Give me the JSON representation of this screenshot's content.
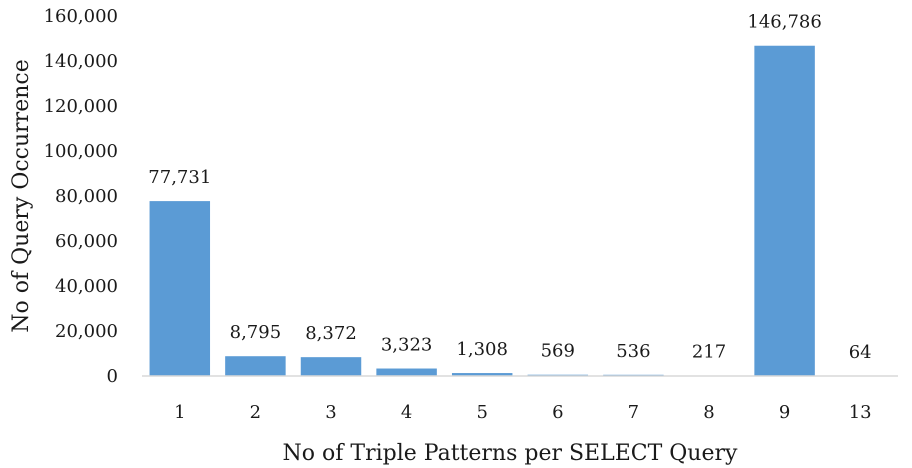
{
  "chart_data": {
    "type": "bar",
    "categories": [
      "1",
      "2",
      "3",
      "4",
      "5",
      "6",
      "7",
      "8",
      "9",
      "13"
    ],
    "values": [
      77731,
      8795,
      8372,
      3323,
      1308,
      569,
      536,
      217,
      146786,
      64
    ],
    "data_labels": [
      "77,731",
      "8,795",
      "8,372",
      "3,323",
      "1,308",
      "569",
      "536",
      "217",
      "146,786",
      "64"
    ],
    "xlabel": "No of Triple Patterns per SELECT Query",
    "ylabel": "No of Query Occurrence",
    "ylim": [
      0,
      160000
    ],
    "yticks": [
      0,
      20000,
      40000,
      60000,
      80000,
      100000,
      120000,
      140000,
      160000
    ],
    "ytick_labels": [
      "0",
      "20,000",
      "40,000",
      "60,000",
      "80,000",
      "100,000",
      "120,000",
      "140,000",
      "160,000"
    ],
    "bar_color": "#5b9bd5",
    "axis_color": "#d9d9d9",
    "grid": false,
    "legend": "none"
  }
}
